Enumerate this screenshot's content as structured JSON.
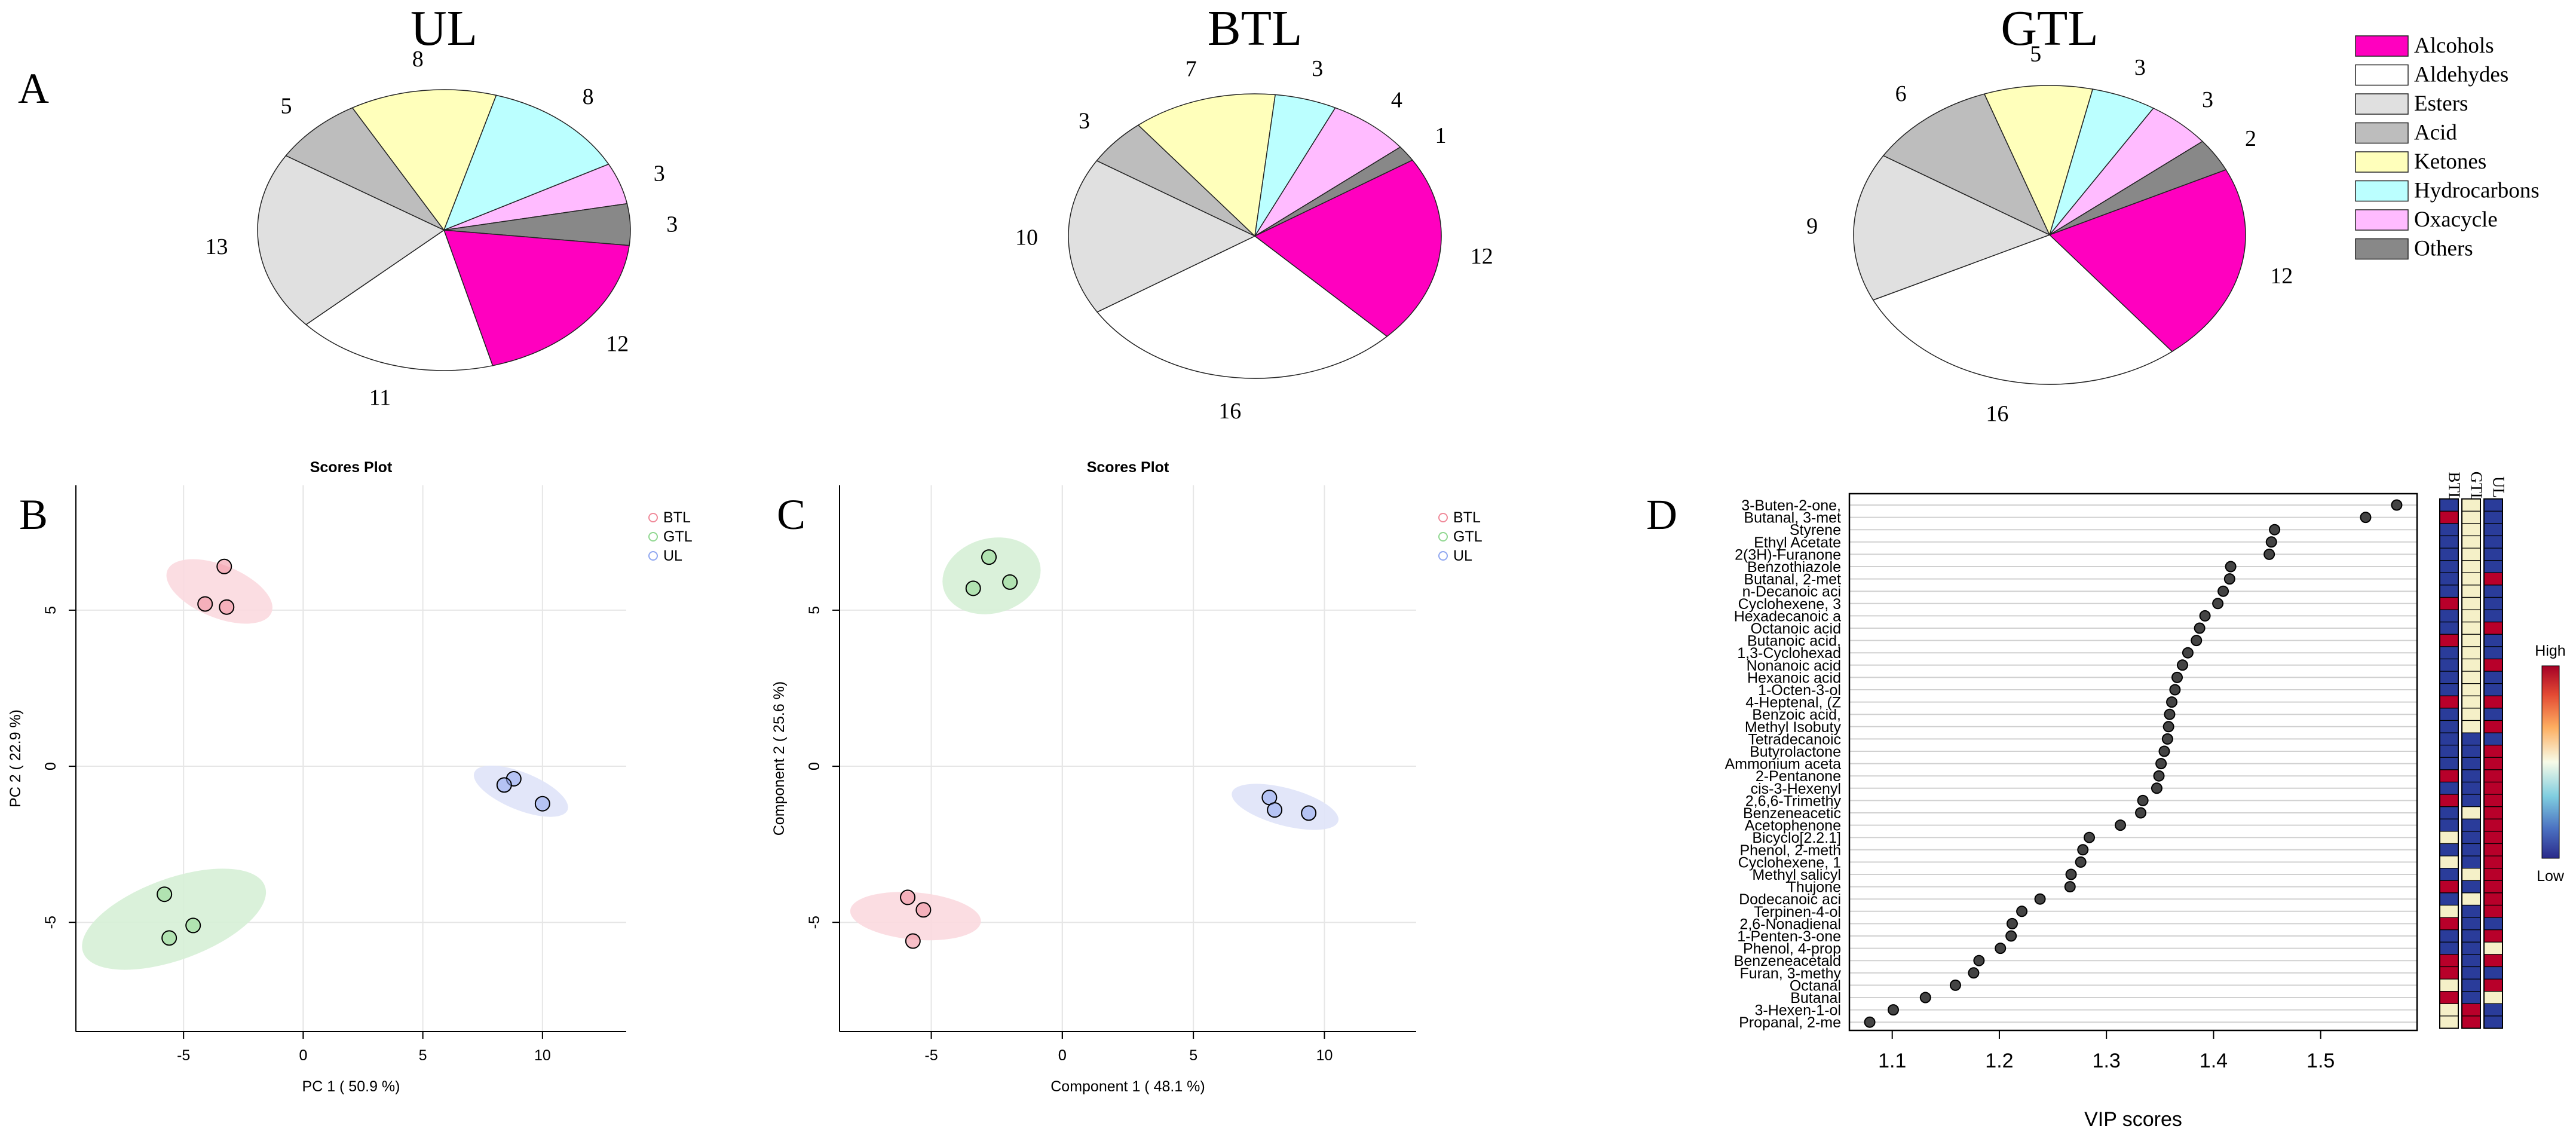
{
  "panel_labels": {
    "a": "A",
    "b": "B",
    "c": "C",
    "d": "D"
  },
  "colors": {
    "alcohols": "#ff00bf",
    "aldehydes": "#ffffff",
    "esters": "#e0e0e0",
    "acid": "#bdbdbd",
    "ketones": "#ffffbb",
    "hydrocarbons": "#bbffff",
    "oxacycle": "#ffbbff",
    "others": "#888888",
    "btl_point": "#f08a9a",
    "gtl_point": "#8fd78f",
    "ul_point": "#8fa6f0",
    "btl_ellipse": "#fbd9df",
    "gtl_ellipse": "#d6f0d6",
    "ul_ellipse": "#dfe3f8",
    "heat_high": "#b8002a",
    "heat_mid": "#f5f0c8",
    "heat_low": "#2a3c9a"
  },
  "chart_data": [
    {
      "type": "pie",
      "title": "UL",
      "legend_position": "top-right",
      "labels": [
        "Alcohols",
        "Aldehydes",
        "Esters",
        "Acid",
        "Ketones",
        "Hydrocarbons",
        "Oxacycle",
        "Others"
      ],
      "values": [
        12,
        11,
        13,
        5,
        8,
        8,
        3,
        3
      ]
    },
    {
      "type": "pie",
      "title": "BTL",
      "labels": [
        "Alcohols",
        "Aldehydes",
        "Esters",
        "Acid",
        "Ketones",
        "Hydrocarbons",
        "Oxacycle",
        "Others"
      ],
      "values": [
        12,
        16,
        10,
        3,
        7,
        3,
        4,
        1
      ]
    },
    {
      "type": "pie",
      "title": "GTL",
      "labels": [
        "Alcohols",
        "Aldehydes",
        "Esters",
        "Acid",
        "Ketones",
        "Hydrocarbons",
        "Oxacycle",
        "Others"
      ],
      "values": [
        12,
        16,
        9,
        6,
        5,
        3,
        3,
        2
      ]
    },
    {
      "type": "scatter",
      "title": "Scores Plot",
      "xlabel": "PC 1 ( 50.9 %)",
      "ylabel": "PC 2 ( 22.9 %)",
      "xlim": [
        -9.5,
        13.5
      ],
      "ylim": [
        -8.5,
        9
      ],
      "xticks": [
        -5,
        0,
        5,
        10
      ],
      "yticks": [
        -5,
        0,
        5
      ],
      "grid": true,
      "legend_position": "top-right",
      "series": [
        {
          "name": "BTL",
          "points": [
            [
              -3.3,
              6.4
            ],
            [
              -4.1,
              5.2
            ],
            [
              -3.2,
              5.1
            ]
          ],
          "ellipse": {
            "cx": -3.5,
            "cy": 5.6,
            "rx": 1.1,
            "ry": 1.8,
            "angle": -68
          }
        },
        {
          "name": "GTL",
          "points": [
            [
              -5.8,
              -4.1
            ],
            [
              -4.6,
              -5.1
            ],
            [
              -5.6,
              -5.5
            ]
          ],
          "ellipse": {
            "cx": -5.4,
            "cy": -4.9,
            "rx": 1.7,
            "ry": 3.1,
            "angle": 70
          }
        },
        {
          "name": "UL",
          "points": [
            [
              8.8,
              -0.4
            ],
            [
              8.4,
              -0.6
            ],
            [
              10.0,
              -1.2
            ]
          ],
          "ellipse": {
            "cx": 9.1,
            "cy": -0.8,
            "rx": 2.1,
            "ry": 0.6,
            "angle": 22
          }
        }
      ]
    },
    {
      "type": "scatter",
      "title": "Scores Plot",
      "xlabel": "Component 1 ( 48.1 %)",
      "ylabel": "Component 2 ( 25.6 %)",
      "xlim": [
        -8.5,
        13.5
      ],
      "ylim": [
        -8.5,
        9
      ],
      "xticks": [
        -5,
        0,
        5,
        10
      ],
      "yticks": [
        -5,
        0,
        5
      ],
      "grid": true,
      "legend_position": "top-right",
      "series": [
        {
          "name": "BTL",
          "points": [
            [
              -5.9,
              -4.2
            ],
            [
              -5.3,
              -4.6
            ],
            [
              -5.7,
              -5.6
            ]
          ],
          "ellipse": {
            "cx": -5.6,
            "cy": -4.8,
            "rx": 0.9,
            "ry": 2.1,
            "angle": -85
          }
        },
        {
          "name": "GTL",
          "points": [
            [
              -2.8,
              6.7
            ],
            [
              -3.4,
              5.7
            ],
            [
              -2.0,
              5.9
            ]
          ],
          "ellipse": {
            "cx": -2.7,
            "cy": 6.1,
            "rx": 1.9,
            "ry": 1.2,
            "angle": -15
          }
        },
        {
          "name": "UL",
          "points": [
            [
              7.9,
              -1.0
            ],
            [
              8.1,
              -1.4
            ],
            [
              9.4,
              -1.5
            ]
          ],
          "ellipse": {
            "cx": 8.5,
            "cy": -1.3,
            "rx": 2.1,
            "ry": 0.6,
            "angle": 15
          }
        }
      ]
    },
    {
      "type": "scatter",
      "subtype": "vip",
      "xlabel": "VIP scores",
      "xlim": [
        1.06,
        1.59
      ],
      "xticks": [
        1.1,
        1.2,
        1.3,
        1.4,
        1.5
      ],
      "heatmap_columns": [
        "BTL",
        "GTL",
        "UL"
      ],
      "colorbar_labels": {
        "high": "High",
        "low": "Low"
      },
      "items": [
        {
          "name": "3-Buten-2-one,",
          "vip": 1.571,
          "heat": [
            -1,
            0.2,
            -1
          ]
        },
        {
          "name": "Butanal, 3-met",
          "vip": 1.542,
          "heat": [
            1,
            0.2,
            -1
          ]
        },
        {
          "name": "Styrene",
          "vip": 1.457,
          "heat": [
            -1,
            0.2,
            -1
          ]
        },
        {
          "name": "Ethyl Acetate",
          "vip": 1.454,
          "heat": [
            -1,
            0.2,
            -1
          ]
        },
        {
          "name": "2(3H)-Furanone",
          "vip": 1.452,
          "heat": [
            -1,
            0.2,
            -1
          ]
        },
        {
          "name": "Benzothiazole",
          "vip": 1.416,
          "heat": [
            -1,
            0.2,
            -1
          ]
        },
        {
          "name": "Butanal, 2-met",
          "vip": 1.415,
          "heat": [
            -1,
            0.2,
            1
          ]
        },
        {
          "name": "n-Decanoic aci",
          "vip": 1.409,
          "heat": [
            -1,
            0.2,
            -1
          ]
        },
        {
          "name": "Cyclohexene, 3",
          "vip": 1.404,
          "heat": [
            1,
            0.2,
            -1
          ]
        },
        {
          "name": "Hexadecanoic a",
          "vip": 1.392,
          "heat": [
            -1,
            0.2,
            -1
          ]
        },
        {
          "name": "Octanoic acid",
          "vip": 1.387,
          "heat": [
            -1,
            0.2,
            1
          ]
        },
        {
          "name": "Butanoic acid,",
          "vip": 1.384,
          "heat": [
            1,
            0.2,
            -1
          ]
        },
        {
          "name": "1,3-Cyclohexad",
          "vip": 1.376,
          "heat": [
            -1,
            0.2,
            -1
          ]
        },
        {
          "name": "Nonanoic acid",
          "vip": 1.371,
          "heat": [
            -1,
            0.2,
            1
          ]
        },
        {
          "name": "Hexanoic acid",
          "vip": 1.366,
          "heat": [
            -1,
            0.2,
            -1
          ]
        },
        {
          "name": "1-Octen-3-ol",
          "vip": 1.364,
          "heat": [
            -1,
            0.2,
            -1
          ]
        },
        {
          "name": "4-Heptenal, (Z",
          "vip": 1.361,
          "heat": [
            1,
            0.2,
            1
          ]
        },
        {
          "name": "Benzoic acid,",
          "vip": 1.359,
          "heat": [
            -1,
            0.2,
            -1
          ]
        },
        {
          "name": "Methyl Isobuty",
          "vip": 1.358,
          "heat": [
            -1,
            0.2,
            1
          ]
        },
        {
          "name": "Tetradecanoic",
          "vip": 1.357,
          "heat": [
            -1,
            -1,
            -1
          ]
        },
        {
          "name": "Butyrolactone",
          "vip": 1.354,
          "heat": [
            -1,
            -1,
            1
          ]
        },
        {
          "name": "Ammonium aceta",
          "vip": 1.351,
          "heat": [
            -1,
            -1,
            1
          ]
        },
        {
          "name": "2-Pentanone",
          "vip": 1.349,
          "heat": [
            1,
            -1,
            1
          ]
        },
        {
          "name": "cis-3-Hexenyl",
          "vip": 1.347,
          "heat": [
            -1,
            -1,
            1
          ]
        },
        {
          "name": "2,6,6-Trimethy",
          "vip": 1.334,
          "heat": [
            1,
            -1,
            1
          ]
        },
        {
          "name": "Benzeneacetic",
          "vip": 1.332,
          "heat": [
            -1,
            0.2,
            1
          ]
        },
        {
          "name": "Acetophenone",
          "vip": 1.313,
          "heat": [
            -1,
            -1,
            1
          ]
        },
        {
          "name": "Bicyclo[2.2.1]",
          "vip": 1.284,
          "heat": [
            0.2,
            -1,
            1
          ]
        },
        {
          "name": "Phenol, 2-meth",
          "vip": 1.278,
          "heat": [
            -1,
            -1,
            1
          ]
        },
        {
          "name": "Cyclohexene, 1",
          "vip": 1.276,
          "heat": [
            0.2,
            -1,
            1
          ]
        },
        {
          "name": "Methyl salicyl",
          "vip": 1.267,
          "heat": [
            -1,
            0.2,
            1
          ]
        },
        {
          "name": "Thujone",
          "vip": 1.266,
          "heat": [
            1,
            -1,
            1
          ]
        },
        {
          "name": "Dodecanoic aci",
          "vip": 1.238,
          "heat": [
            -1,
            0.2,
            1
          ]
        },
        {
          "name": "Terpinen-4-ol",
          "vip": 1.221,
          "heat": [
            0.2,
            -1,
            1
          ]
        },
        {
          "name": "2,6-Nonadienal",
          "vip": 1.212,
          "heat": [
            1,
            -1,
            -1
          ]
        },
        {
          "name": "1-Penten-3-one",
          "vip": 1.211,
          "heat": [
            -1,
            -1,
            1
          ]
        },
        {
          "name": "Phenol, 4-prop",
          "vip": 1.201,
          "heat": [
            -1,
            -1,
            0.2
          ]
        },
        {
          "name": "Benzeneacetald",
          "vip": 1.181,
          "heat": [
            1,
            -1,
            1
          ]
        },
        {
          "name": "Furan, 3-methy",
          "vip": 1.176,
          "heat": [
            1,
            -1,
            -1
          ]
        },
        {
          "name": "Octanal",
          "vip": 1.159,
          "heat": [
            0.2,
            -1,
            1
          ]
        },
        {
          "name": "Butanal",
          "vip": 1.131,
          "heat": [
            1,
            -1,
            0.2
          ]
        },
        {
          "name": "3-Hexen-1-ol",
          "vip": 1.101,
          "heat": [
            0.2,
            1,
            -1
          ]
        },
        {
          "name": "Propanal, 2-me",
          "vip": 1.079,
          "heat": [
            0.2,
            1,
            -1
          ]
        }
      ]
    }
  ]
}
